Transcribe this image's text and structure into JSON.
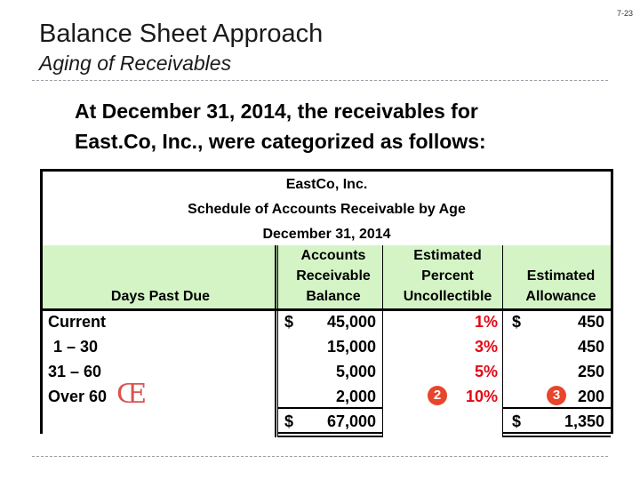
{
  "slide_number": "7-23",
  "title": "Balance Sheet Approach",
  "subtitle": "Aging of Receivables",
  "intro_lines": [
    "At December 31, 2014, the receivables for",
    "East.Co, Inc., were categorized as follows:"
  ],
  "schedule": {
    "company": "EastCo, Inc.",
    "heading": "Schedule of Accounts Receivable by Age",
    "date": "December 31, 2014",
    "columns": {
      "days": "Days Past Due",
      "balance": [
        "Accounts",
        "Receivable",
        "Balance"
      ],
      "percent": [
        "Estimated",
        "Percent",
        "Uncollectible"
      ],
      "allowance": [
        "Estimated",
        "Allowance"
      ]
    },
    "rows": [
      {
        "label": "Current",
        "balance": "45,000",
        "percent": "1%",
        "allowance": "450",
        "balance_dollar": "$",
        "allowance_dollar": "$"
      },
      {
        "label": "1  –  30",
        "balance": "15,000",
        "percent": "3%",
        "allowance": "450",
        "balance_dollar": "",
        "allowance_dollar": ""
      },
      {
        "label": "31  –  60",
        "balance": "5,000",
        "percent": "5%",
        "allowance": "250",
        "balance_dollar": "",
        "allowance_dollar": ""
      },
      {
        "label": "Over 60",
        "balance": "2,000",
        "percent": "10%",
        "allowance": "200",
        "balance_dollar": "",
        "allowance_dollar": ""
      }
    ],
    "total": {
      "balance_dollar": "$",
      "balance": "67,000",
      "allowance_dollar": "$",
      "allowance": "1,350"
    },
    "markers": {
      "first": "Œ",
      "second": "2",
      "third": "3"
    },
    "colors": {
      "header_fill": "#d4f4c6",
      "percent_text": "#e30613",
      "marker_fill": "#e8452c"
    }
  }
}
